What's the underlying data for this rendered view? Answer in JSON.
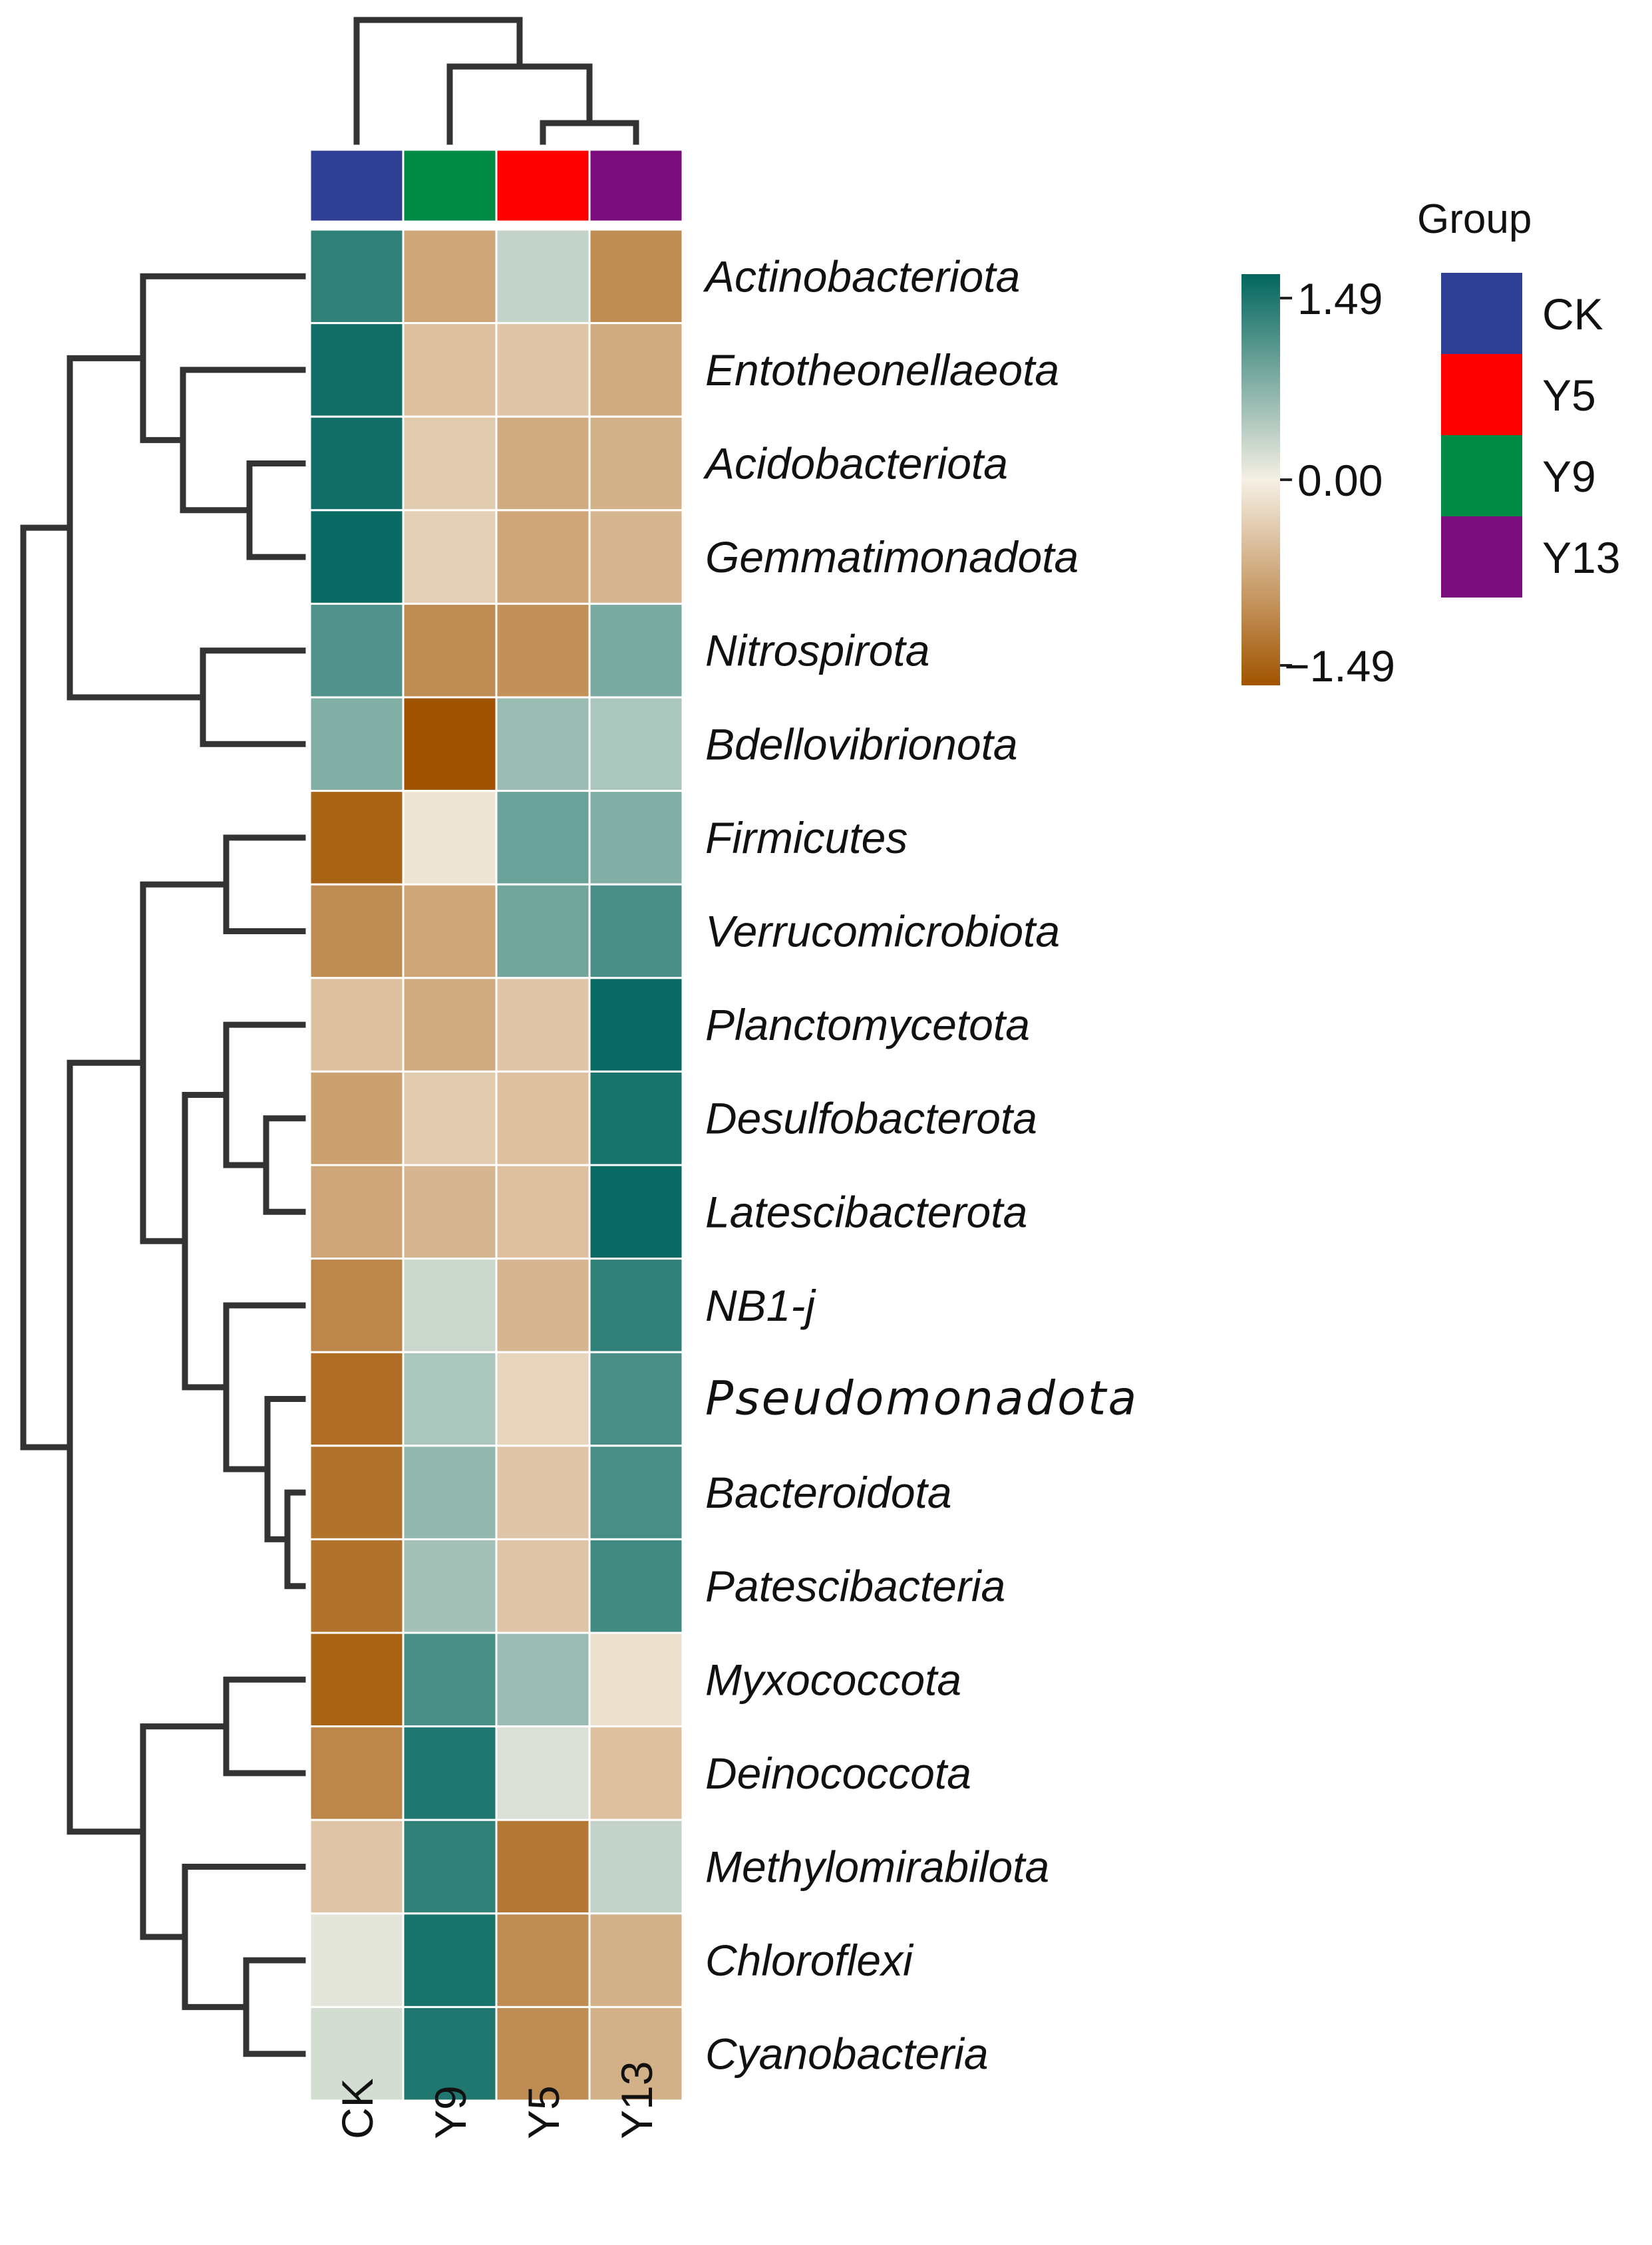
{
  "chart_data": {
    "type": "heatmap",
    "title": "",
    "columns": [
      "CK",
      "Y9",
      "Y5",
      "Y13"
    ],
    "column_groups": [
      "CK",
      "Y9",
      "Y5",
      "Y13"
    ],
    "rows": [
      "Actinobacteriota",
      "Entotheonellaeota",
      "Acidobacteriota",
      "Gemmatimonadota",
      "Nitrospirota",
      "Bdellovibrionota",
      "Firmicutes",
      "Verrucomicrobiota",
      "Planctomycetota",
      "Desulfobacterota",
      "Latescibacterota",
      "NB1-j",
      "Pseudomonadota",
      "Bacteroidota",
      "Patescibacteria",
      "Myxococcota",
      "Deinococcota",
      "Methylomirabilota",
      "Chloroflexi",
      "Cyanobacteria"
    ],
    "values": [
      [
        1.2,
        -0.7,
        0.3,
        -0.95
      ],
      [
        1.4,
        -0.45,
        -0.4,
        -0.65
      ],
      [
        1.4,
        -0.35,
        -0.65,
        -0.6
      ],
      [
        1.45,
        -0.3,
        -0.7,
        -0.55
      ],
      [
        1.0,
        -0.95,
        -0.9,
        0.75
      ],
      [
        0.7,
        -1.49,
        0.55,
        0.45
      ],
      [
        -1.35,
        -0.1,
        0.85,
        0.7
      ],
      [
        -0.95,
        -0.7,
        0.8,
        1.05
      ],
      [
        -0.45,
        -0.65,
        -0.4,
        1.45
      ],
      [
        -0.75,
        -0.35,
        -0.45,
        1.35
      ],
      [
        -0.7,
        -0.55,
        -0.45,
        1.45
      ],
      [
        -1.0,
        0.25,
        -0.55,
        1.2
      ],
      [
        -1.25,
        0.45,
        -0.25,
        1.05
      ],
      [
        -1.2,
        0.6,
        -0.4,
        1.05
      ],
      [
        -1.2,
        0.5,
        -0.4,
        1.1
      ],
      [
        -1.35,
        1.05,
        0.55,
        -0.15
      ],
      [
        -1.0,
        1.3,
        0.15,
        -0.45
      ],
      [
        -0.4,
        1.2,
        -1.15,
        0.3
      ],
      [
        0.1,
        1.35,
        -0.95,
        -0.6
      ],
      [
        0.2,
        1.3,
        -0.95,
        -0.6
      ]
    ],
    "color_scale": {
      "min": -1.49,
      "mid": 0.0,
      "max": 1.49,
      "colors": [
        "#a15400",
        "#f5efe4",
        "#01665e"
      ],
      "tick_labels": [
        "1.49",
        "0.00",
        "−1.49"
      ]
    },
    "legend": {
      "title": "Group",
      "entries": [
        {
          "label": "CK",
          "color": "#2f3f94"
        },
        {
          "label": "Y5",
          "color": "#ff0000"
        },
        {
          "label": "Y9",
          "color": "#008a45"
        },
        {
          "label": "Y13",
          "color": "#7a0d7b"
        }
      ]
    },
    "group_colors": {
      "CK": "#2f3f94",
      "Y9": "#008a45",
      "Y5": "#ff0000",
      "Y13": "#7a0d7b"
    },
    "bold_rows": [
      "Pseudomonadota"
    ],
    "dendrogram_color": "#333333"
  }
}
